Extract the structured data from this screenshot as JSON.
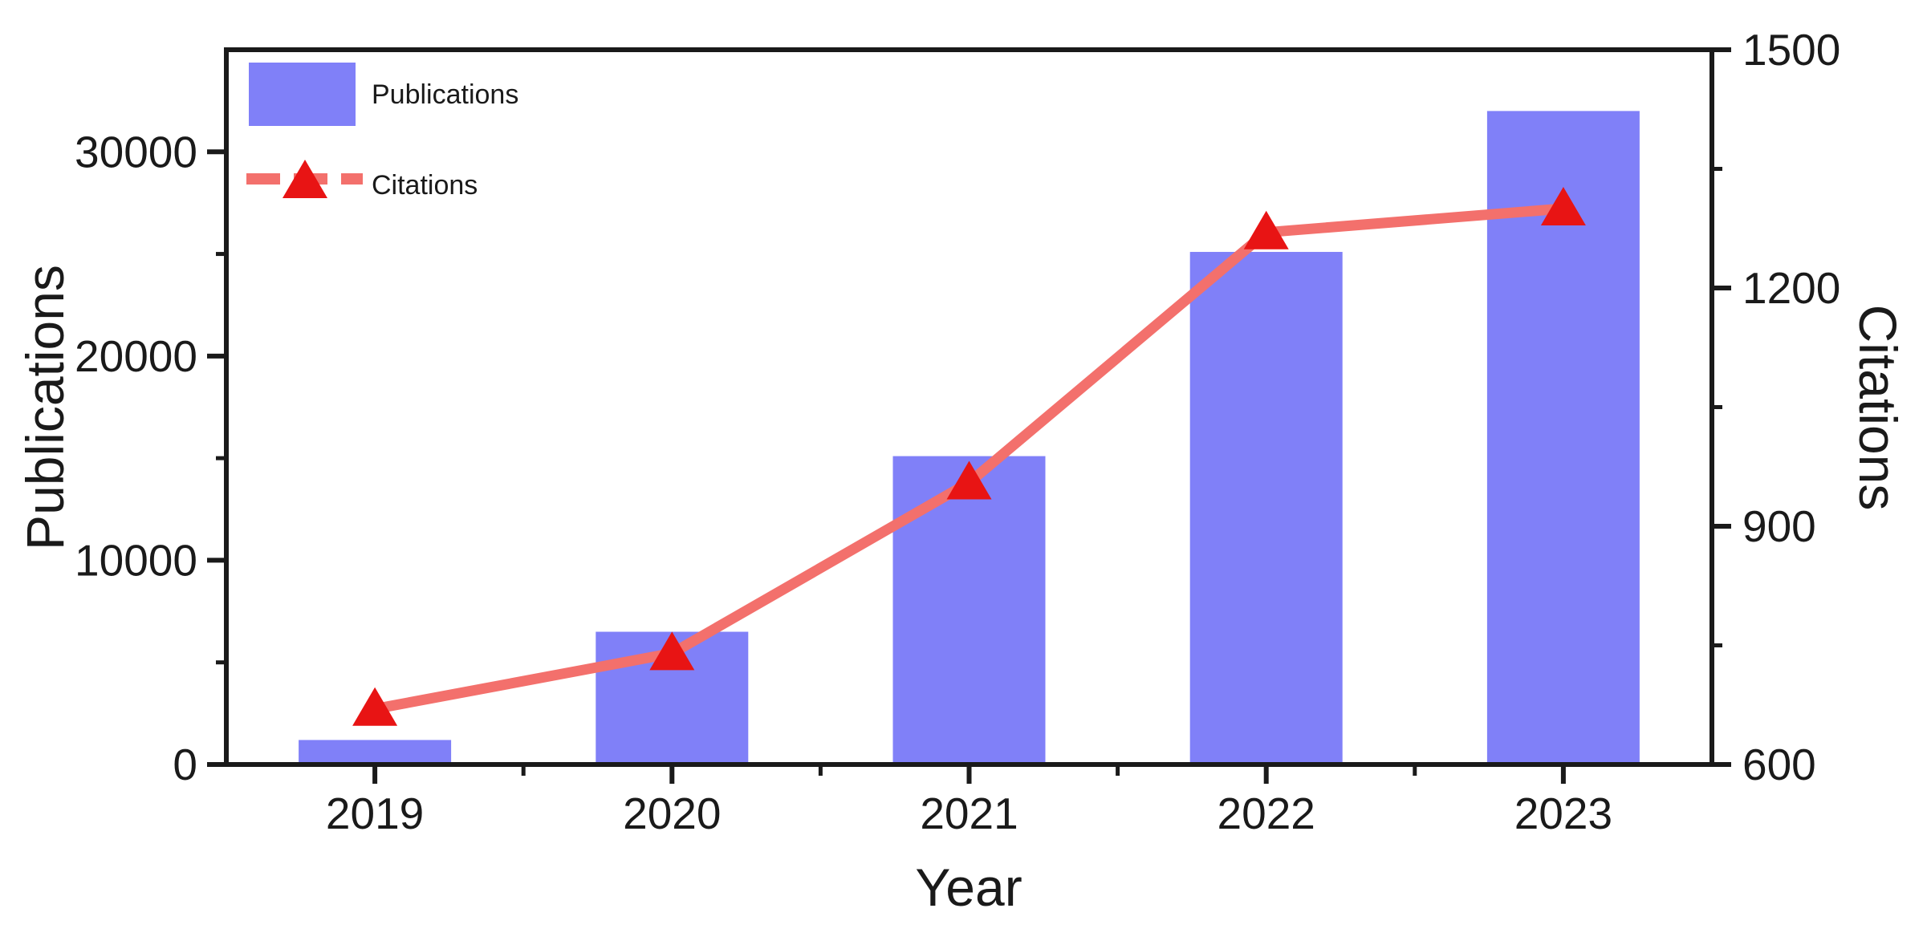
{
  "chart_data": {
    "type": "combo-bar-line",
    "title": "",
    "categories": [
      "2019",
      "2020",
      "2021",
      "2022",
      "2023"
    ],
    "xlabel": "Year",
    "ylabel_left": "Publications",
    "ylabel_right": "Citations",
    "ylim_left": [
      0,
      35000
    ],
    "ylim_right": [
      600,
      1500
    ],
    "yticks_left": [
      0,
      10000,
      20000,
      30000
    ],
    "yticks_minor_left": [
      5000,
      15000,
      25000
    ],
    "yticks_right": [
      600,
      900,
      1200,
      1500
    ],
    "yticks_minor_right": [
      750,
      1050,
      1350
    ],
    "xticks_minor": "between-categories",
    "grid": false,
    "legend_position": "inside-top-left",
    "series": [
      {
        "name": "Publications",
        "type": "bar",
        "axis": "left",
        "color": "#8080f8",
        "values": [
          1200,
          6500,
          15100,
          25100,
          32000
        ]
      },
      {
        "name": "Citations",
        "type": "line",
        "axis": "right",
        "color": "#f3706c",
        "line_style": "solid",
        "legend_line_style": "dashed",
        "marker": "triangle-up",
        "marker_color": "#e81414",
        "values": [
          670,
          740,
          955,
          1270,
          1300
        ]
      }
    ]
  },
  "colors": {
    "bar": "#8080f8",
    "line": "#f3706c",
    "marker": "#e81414",
    "axis": "#1a1a1a",
    "background": "#ffffff"
  }
}
